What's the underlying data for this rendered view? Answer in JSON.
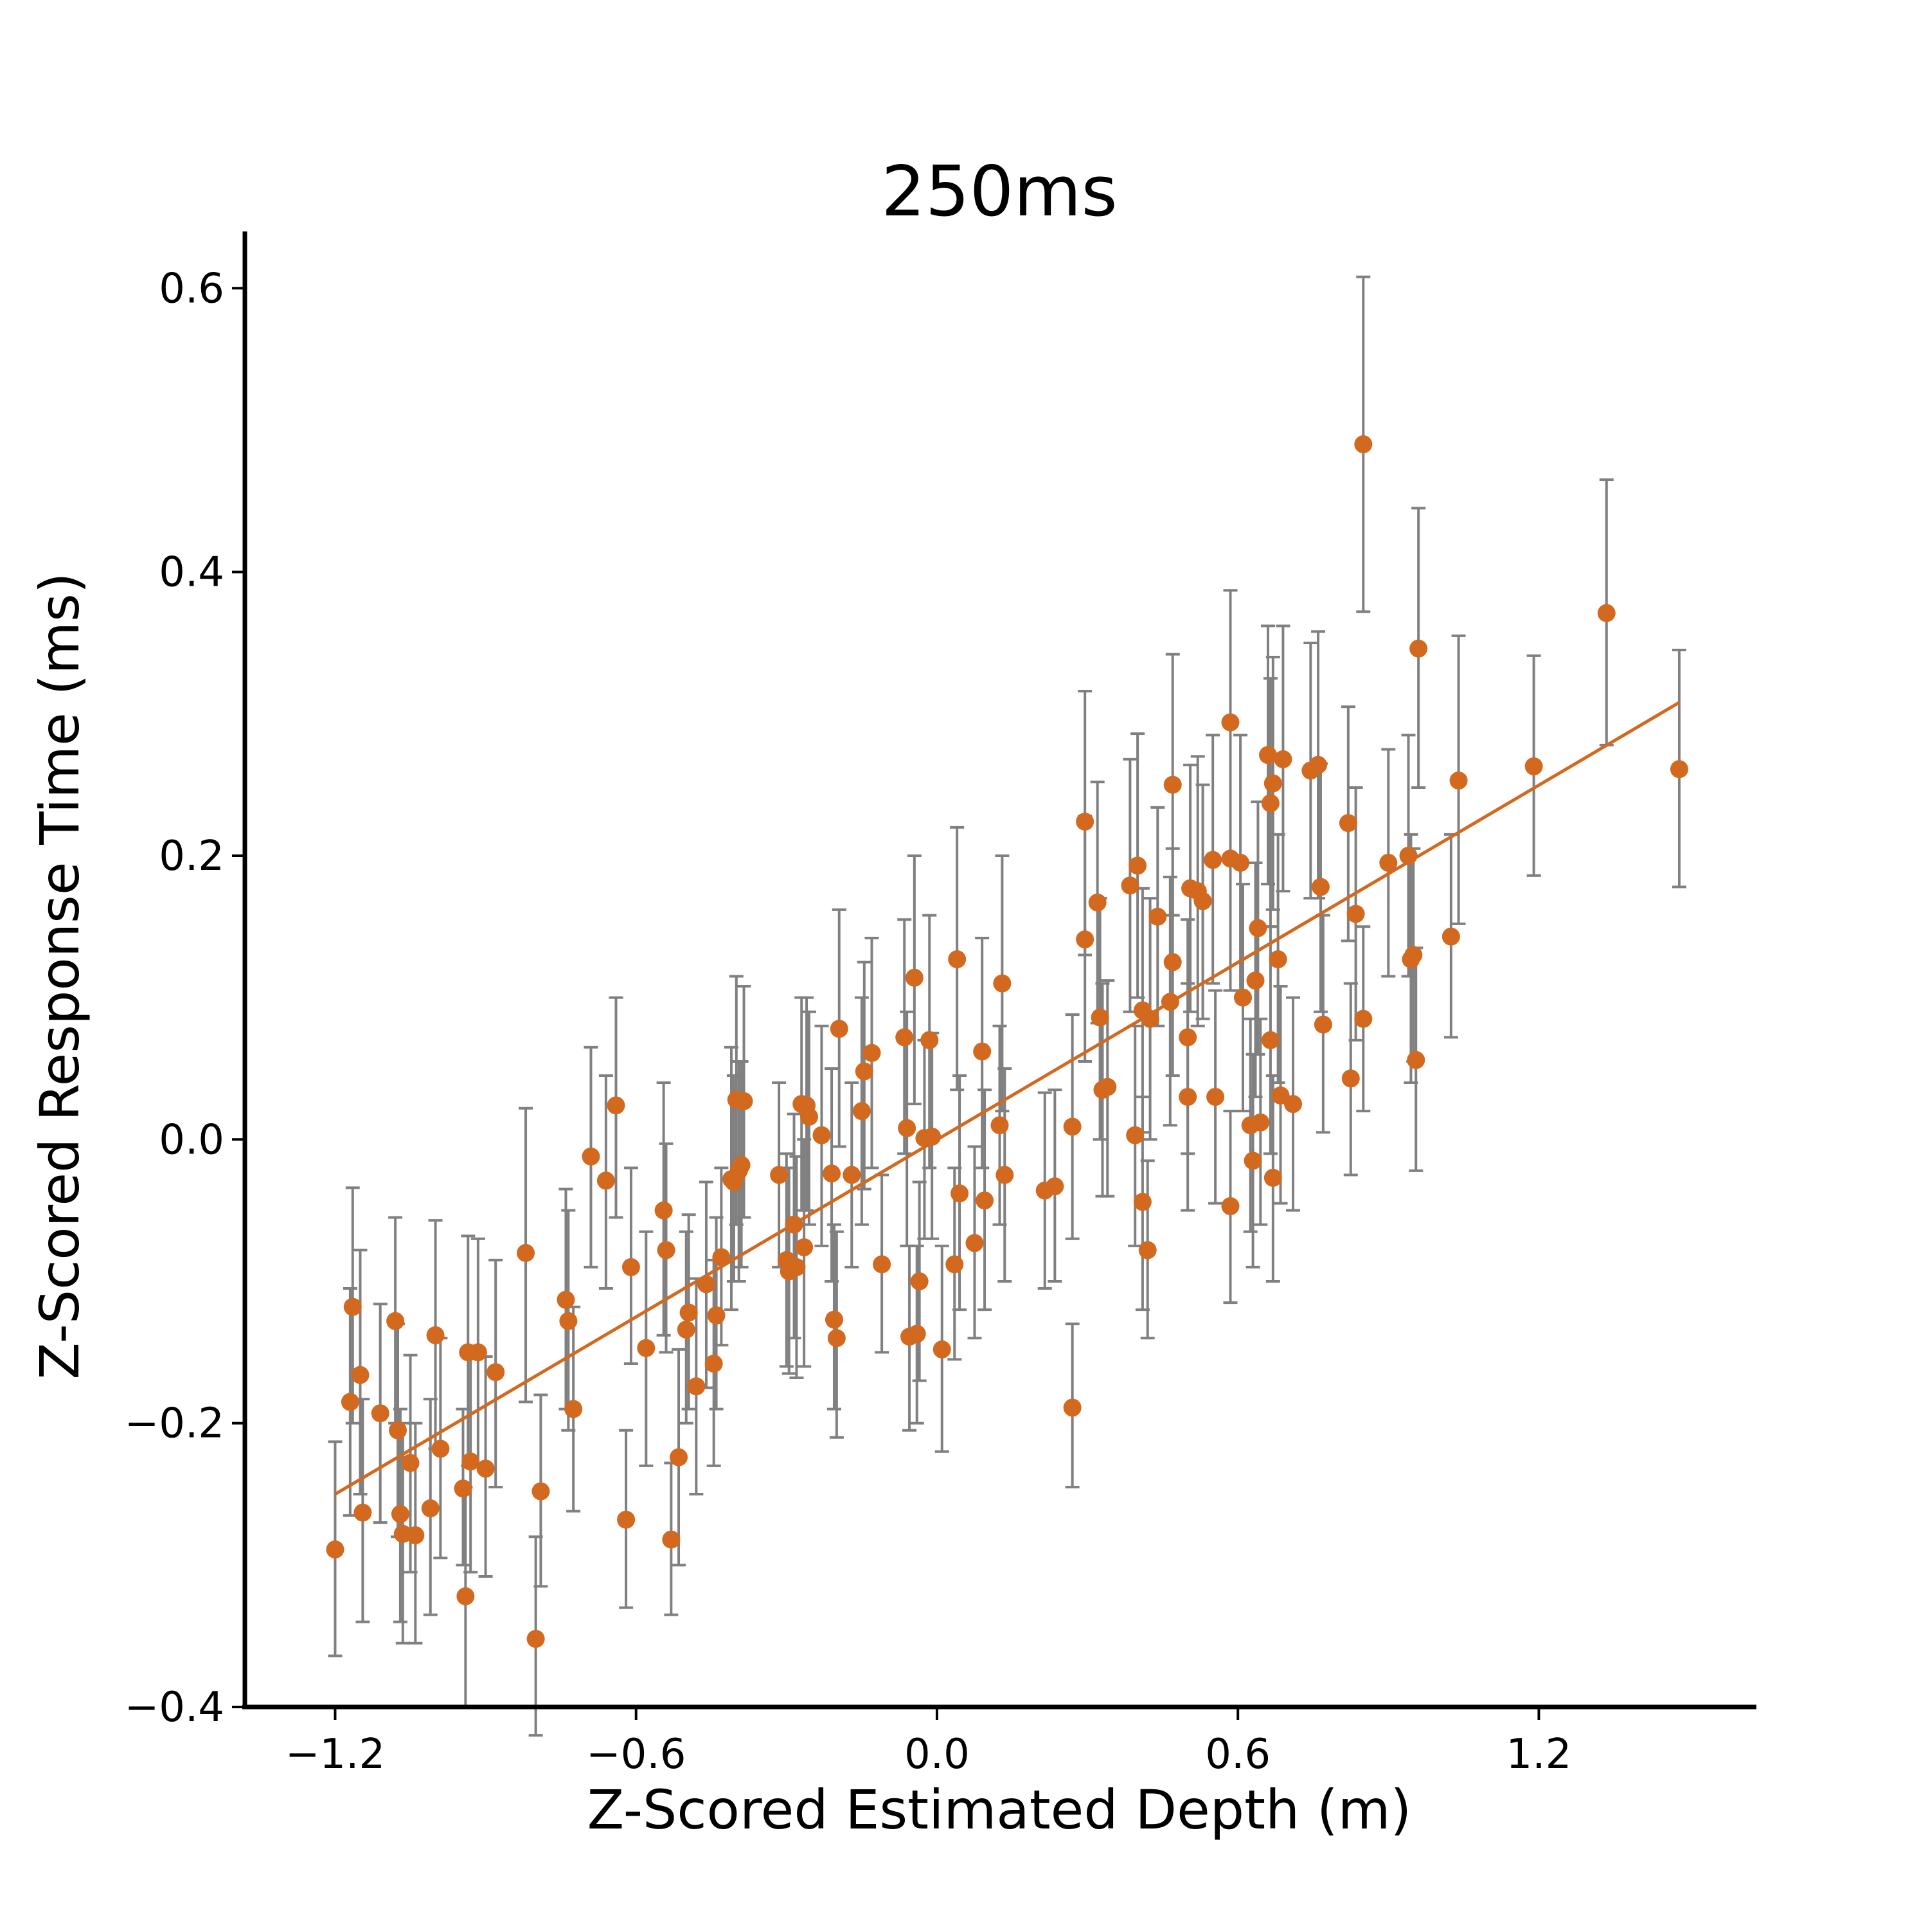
{
  "chart_data": {
    "type": "scatter",
    "title": "250ms",
    "xlabel": "Z-Scored Estimated Depth (m)",
    "ylabel": "Z-Scored Response Time (ms)",
    "xlim": [
      -1.38,
      1.63
    ],
    "ylim": [
      -0.4,
      0.64
    ],
    "xticks": [
      -1.2,
      -0.6,
      0.0,
      0.6,
      1.2
    ],
    "xtick_labels": [
      "−1.2",
      "−0.6",
      "0.0",
      "0.6",
      "1.2"
    ],
    "yticks": [
      -0.4,
      -0.2,
      0.0,
      0.2,
      0.4,
      0.6
    ],
    "ytick_labels": [
      "−0.4",
      "−0.2",
      "0.0",
      "0.2",
      "0.4",
      "0.6"
    ],
    "grid": false,
    "legend": "none",
    "colors": {
      "points": "#d2691e",
      "fit_line": "#d2691e",
      "error_bars": "#808080",
      "axes": "#000000"
    },
    "fit_line": {
      "x": [
        -1.2,
        1.48
      ],
      "y": [
        -0.25,
        0.308
      ]
    },
    "points": [
      {
        "x": -1.2,
        "y": -0.289,
        "lo": -0.364,
        "hi": -0.213
      },
      {
        "x": -1.17,
        "y": -0.185,
        "lo": -0.265,
        "hi": -0.105
      },
      {
        "x": -1.165,
        "y": -0.118,
        "lo": -0.2,
        "hi": -0.034
      },
      {
        "x": -1.15,
        "y": -0.166,
        "lo": -0.25,
        "hi": -0.078
      },
      {
        "x": -1.145,
        "y": -0.263,
        "lo": -0.34,
        "hi": -0.183
      },
      {
        "x": -1.11,
        "y": -0.193,
        "lo": -0.27,
        "hi": -0.116
      },
      {
        "x": -1.08,
        "y": -0.128,
        "lo": -0.2,
        "hi": -0.055
      },
      {
        "x": -1.075,
        "y": -0.205,
        "lo": -0.28,
        "hi": -0.13
      },
      {
        "x": -1.07,
        "y": -0.264,
        "lo": -0.34,
        "hi": -0.19
      },
      {
        "x": -1.065,
        "y": -0.278,
        "lo": -0.355,
        "hi": -0.2
      },
      {
        "x": -1.05,
        "y": -0.228,
        "lo": -0.305,
        "hi": -0.152
      },
      {
        "x": -1.04,
        "y": -0.279,
        "lo": -0.355,
        "hi": -0.2
      },
      {
        "x": -1.01,
        "y": -0.26,
        "lo": -0.335,
        "hi": -0.183
      },
      {
        "x": -1.0,
        "y": -0.138,
        "lo": -0.218,
        "hi": -0.057
      },
      {
        "x": -0.99,
        "y": -0.218,
        "lo": -0.295,
        "hi": -0.14
      },
      {
        "x": -0.945,
        "y": -0.246,
        "lo": -0.3,
        "hi": -0.19
      },
      {
        "x": -0.94,
        "y": -0.322,
        "lo": -0.4,
        "hi": -0.245
      },
      {
        "x": -0.935,
        "y": -0.15,
        "lo": -0.23,
        "hi": -0.068
      },
      {
        "x": -0.93,
        "y": -0.227,
        "lo": -0.305,
        "hi": -0.15
      },
      {
        "x": -0.915,
        "y": -0.15,
        "lo": -0.23,
        "hi": -0.07
      },
      {
        "x": -0.9,
        "y": -0.232,
        "lo": -0.308,
        "hi": -0.153
      },
      {
        "x": -0.88,
        "y": -0.164,
        "lo": -0.245,
        "hi": -0.085
      },
      {
        "x": -0.82,
        "y": -0.08,
        "lo": -0.185,
        "hi": 0.022
      },
      {
        "x": -0.8,
        "y": -0.352,
        "lo": -0.42,
        "hi": -0.28
      },
      {
        "x": -0.79,
        "y": -0.248,
        "lo": -0.315,
        "hi": -0.18
      },
      {
        "x": -0.74,
        "y": -0.113,
        "lo": -0.19,
        "hi": -0.035
      },
      {
        "x": -0.735,
        "y": -0.128,
        "lo": -0.205,
        "hi": -0.05
      },
      {
        "x": -0.725,
        "y": -0.19,
        "lo": -0.262,
        "hi": -0.118
      },
      {
        "x": -0.69,
        "y": -0.012,
        "lo": -0.09,
        "hi": 0.065
      },
      {
        "x": -0.66,
        "y": -0.029,
        "lo": -0.105,
        "hi": 0.045
      },
      {
        "x": -0.64,
        "y": 0.024,
        "lo": -0.055,
        "hi": 0.1
      },
      {
        "x": -0.62,
        "y": -0.268,
        "lo": -0.33,
        "hi": -0.205
      },
      {
        "x": -0.61,
        "y": -0.09,
        "lo": -0.158,
        "hi": -0.02
      },
      {
        "x": -0.58,
        "y": -0.147,
        "lo": -0.23,
        "hi": -0.065
      },
      {
        "x": -0.545,
        "y": -0.05,
        "lo": -0.138,
        "hi": 0.04
      },
      {
        "x": -0.54,
        "y": -0.078,
        "lo": -0.15,
        "hi": -0.003
      },
      {
        "x": -0.53,
        "y": -0.282,
        "lo": -0.335,
        "hi": -0.228
      },
      {
        "x": -0.515,
        "y": -0.224,
        "lo": -0.3,
        "hi": -0.148
      },
      {
        "x": -0.5,
        "y": -0.134,
        "lo": -0.2,
        "hi": -0.065
      },
      {
        "x": -0.495,
        "y": -0.122,
        "lo": -0.19,
        "hi": -0.053
      },
      {
        "x": -0.48,
        "y": -0.174,
        "lo": -0.25,
        "hi": -0.098
      },
      {
        "x": -0.46,
        "y": -0.102,
        "lo": -0.175,
        "hi": -0.03
      },
      {
        "x": -0.445,
        "y": -0.158,
        "lo": -0.23,
        "hi": -0.085
      },
      {
        "x": -0.44,
        "y": -0.124,
        "lo": -0.19,
        "hi": -0.055
      },
      {
        "x": -0.43,
        "y": -0.083,
        "lo": -0.145,
        "hi": -0.02
      },
      {
        "x": -0.41,
        "y": -0.028,
        "lo": -0.12,
        "hi": 0.065
      },
      {
        "x": -0.405,
        "y": -0.03,
        "lo": -0.1,
        "hi": 0.045
      },
      {
        "x": -0.4,
        "y": 0.028,
        "lo": -0.06,
        "hi": 0.115
      },
      {
        "x": -0.395,
        "y": -0.022,
        "lo": -0.1,
        "hi": 0.055
      },
      {
        "x": -0.39,
        "y": -0.018,
        "lo": -0.09,
        "hi": 0.055
      },
      {
        "x": -0.385,
        "y": 0.027,
        "lo": -0.055,
        "hi": 0.108
      },
      {
        "x": -0.315,
        "y": -0.025,
        "lo": -0.09,
        "hi": 0.04
      },
      {
        "x": -0.3,
        "y": -0.085,
        "lo": -0.16,
        "hi": -0.01
      },
      {
        "x": -0.295,
        "y": -0.093,
        "lo": -0.165,
        "hi": -0.02
      },
      {
        "x": -0.285,
        "y": -0.06,
        "lo": -0.14,
        "hi": 0.018
      },
      {
        "x": -0.28,
        "y": -0.09,
        "lo": -0.168,
        "hi": -0.012
      },
      {
        "x": -0.27,
        "y": 0.025,
        "lo": -0.05,
        "hi": 0.1
      },
      {
        "x": -0.265,
        "y": -0.076,
        "lo": -0.16,
        "hi": 0.0
      },
      {
        "x": -0.26,
        "y": 0.024,
        "lo": -0.05,
        "hi": 0.1
      },
      {
        "x": -0.255,
        "y": 0.016,
        "lo": -0.06,
        "hi": 0.09
      },
      {
        "x": -0.23,
        "y": 0.003,
        "lo": -0.075,
        "hi": 0.08
      },
      {
        "x": -0.21,
        "y": -0.024,
        "lo": -0.1,
        "hi": 0.05
      },
      {
        "x": -0.205,
        "y": -0.127,
        "lo": -0.19,
        "hi": -0.06
      },
      {
        "x": -0.2,
        "y": -0.14,
        "lo": -0.21,
        "hi": -0.065
      },
      {
        "x": -0.195,
        "y": 0.078,
        "lo": -0.005,
        "hi": 0.162
      },
      {
        "x": -0.17,
        "y": -0.025,
        "lo": -0.09,
        "hi": 0.04
      },
      {
        "x": -0.15,
        "y": 0.02,
        "lo": -0.06,
        "hi": 0.1
      },
      {
        "x": -0.145,
        "y": 0.048,
        "lo": -0.035,
        "hi": 0.125
      },
      {
        "x": -0.13,
        "y": 0.061,
        "lo": -0.02,
        "hi": 0.142
      },
      {
        "x": -0.11,
        "y": -0.088,
        "lo": -0.15,
        "hi": -0.025
      },
      {
        "x": -0.065,
        "y": 0.072,
        "lo": -0.01,
        "hi": 0.155
      },
      {
        "x": -0.06,
        "y": 0.008,
        "lo": -0.075,
        "hi": 0.09
      },
      {
        "x": -0.055,
        "y": -0.139,
        "lo": -0.205,
        "hi": -0.075
      },
      {
        "x": -0.045,
        "y": 0.114,
        "lo": 0.025,
        "hi": 0.2
      },
      {
        "x": -0.04,
        "y": -0.137,
        "lo": -0.2,
        "hi": -0.075
      },
      {
        "x": -0.035,
        "y": -0.1,
        "lo": -0.17,
        "hi": -0.03
      },
      {
        "x": -0.025,
        "y": 0.001,
        "lo": -0.07,
        "hi": 0.07
      },
      {
        "x": -0.015,
        "y": 0.07,
        "lo": -0.02,
        "hi": 0.158
      },
      {
        "x": -0.01,
        "y": 0.002,
        "lo": -0.07,
        "hi": 0.075
      },
      {
        "x": 0.01,
        "y": -0.148,
        "lo": -0.22,
        "hi": -0.075
      },
      {
        "x": 0.035,
        "y": -0.088,
        "lo": -0.155,
        "hi": -0.02
      },
      {
        "x": 0.04,
        "y": 0.127,
        "lo": 0.035,
        "hi": 0.22
      },
      {
        "x": 0.045,
        "y": -0.038,
        "lo": -0.12,
        "hi": 0.045
      },
      {
        "x": 0.075,
        "y": -0.073,
        "lo": -0.14,
        "hi": -0.005
      },
      {
        "x": 0.09,
        "y": 0.062,
        "lo": -0.02,
        "hi": 0.142
      },
      {
        "x": 0.095,
        "y": -0.043,
        "lo": -0.12,
        "hi": 0.035
      },
      {
        "x": 0.125,
        "y": 0.01,
        "lo": -0.06,
        "hi": 0.08
      },
      {
        "x": 0.13,
        "y": 0.11,
        "lo": 0.02,
        "hi": 0.2
      },
      {
        "x": 0.135,
        "y": -0.025,
        "lo": -0.1,
        "hi": 0.05
      },
      {
        "x": 0.215,
        "y": -0.036,
        "lo": -0.105,
        "hi": 0.033
      },
      {
        "x": 0.235,
        "y": -0.033,
        "lo": -0.1,
        "hi": 0.035
      },
      {
        "x": 0.27,
        "y": 0.009,
        "lo": -0.07,
        "hi": 0.088
      },
      {
        "x": 0.27,
        "y": -0.189,
        "lo": -0.245,
        "hi": -0.13
      },
      {
        "x": 0.295,
        "y": 0.141,
        "lo": 0.055,
        "hi": 0.228
      },
      {
        "x": 0.295,
        "y": 0.224,
        "lo": 0.13,
        "hi": 0.316
      },
      {
        "x": 0.32,
        "y": 0.167,
        "lo": 0.082,
        "hi": 0.252
      },
      {
        "x": 0.325,
        "y": 0.086,
        "lo": 0.0,
        "hi": 0.17
      },
      {
        "x": 0.33,
        "y": 0.035,
        "lo": -0.04,
        "hi": 0.11
      },
      {
        "x": 0.34,
        "y": 0.037,
        "lo": -0.04,
        "hi": 0.112
      },
      {
        "x": 0.385,
        "y": 0.179,
        "lo": 0.09,
        "hi": 0.268
      },
      {
        "x": 0.395,
        "y": 0.003,
        "lo": -0.075,
        "hi": 0.08
      },
      {
        "x": 0.4,
        "y": 0.193,
        "lo": 0.1,
        "hi": 0.286
      },
      {
        "x": 0.41,
        "y": -0.044,
        "lo": -0.12,
        "hi": 0.03
      },
      {
        "x": 0.41,
        "y": 0.091,
        "lo": 0.005,
        "hi": 0.177
      },
      {
        "x": 0.42,
        "y": -0.078,
        "lo": -0.14,
        "hi": -0.015
      },
      {
        "x": 0.425,
        "y": 0.085,
        "lo": 0.0,
        "hi": 0.17
      },
      {
        "x": 0.44,
        "y": 0.157,
        "lo": 0.08,
        "hi": 0.234
      },
      {
        "x": 0.465,
        "y": 0.097,
        "lo": 0.01,
        "hi": 0.185
      },
      {
        "x": 0.47,
        "y": 0.25,
        "lo": 0.158,
        "hi": 0.342
      },
      {
        "x": 0.47,
        "y": 0.125,
        "lo": 0.045,
        "hi": 0.205
      },
      {
        "x": 0.5,
        "y": 0.072,
        "lo": -0.01,
        "hi": 0.155
      },
      {
        "x": 0.5,
        "y": 0.03,
        "lo": -0.05,
        "hi": 0.11
      },
      {
        "x": 0.505,
        "y": 0.177,
        "lo": 0.09,
        "hi": 0.264
      },
      {
        "x": 0.52,
        "y": 0.175,
        "lo": 0.08,
        "hi": 0.27
      },
      {
        "x": 0.53,
        "y": 0.168,
        "lo": 0.085,
        "hi": 0.25
      },
      {
        "x": 0.55,
        "y": 0.197,
        "lo": 0.11,
        "hi": 0.285
      },
      {
        "x": 0.555,
        "y": 0.03,
        "lo": -0.045,
        "hi": 0.105
      },
      {
        "x": 0.585,
        "y": 0.294,
        "lo": 0.2,
        "hi": 0.387
      },
      {
        "x": 0.585,
        "y": -0.047,
        "lo": -0.115,
        "hi": 0.02
      },
      {
        "x": 0.585,
        "y": 0.198,
        "lo": 0.105,
        "hi": 0.292
      },
      {
        "x": 0.605,
        "y": 0.195,
        "lo": 0.105,
        "hi": 0.285
      },
      {
        "x": 0.61,
        "y": 0.1,
        "lo": 0.02,
        "hi": 0.18
      },
      {
        "x": 0.625,
        "y": 0.01,
        "lo": -0.065,
        "hi": 0.085
      },
      {
        "x": 0.63,
        "y": -0.015,
        "lo": -0.09,
        "hi": 0.06
      },
      {
        "x": 0.635,
        "y": 0.112,
        "lo": 0.03,
        "hi": 0.195
      },
      {
        "x": 0.64,
        "y": 0.149,
        "lo": 0.06,
        "hi": 0.238
      },
      {
        "x": 0.645,
        "y": 0.012,
        "lo": -0.06,
        "hi": 0.085
      },
      {
        "x": 0.66,
        "y": 0.271,
        "lo": 0.18,
        "hi": 0.362
      },
      {
        "x": 0.665,
        "y": 0.07,
        "lo": -0.01,
        "hi": 0.15
      },
      {
        "x": 0.665,
        "y": 0.237,
        "lo": 0.15,
        "hi": 0.325
      },
      {
        "x": 0.67,
        "y": 0.251,
        "lo": 0.162,
        "hi": 0.34
      },
      {
        "x": 0.67,
        "y": -0.027,
        "lo": -0.1,
        "hi": 0.045
      },
      {
        "x": 0.68,
        "y": 0.127,
        "lo": 0.04,
        "hi": 0.215
      },
      {
        "x": 0.685,
        "y": 0.031,
        "lo": -0.045,
        "hi": 0.108
      },
      {
        "x": 0.69,
        "y": 0.268,
        "lo": 0.175,
        "hi": 0.362
      },
      {
        "x": 0.71,
        "y": 0.025,
        "lo": -0.05,
        "hi": 0.1
      },
      {
        "x": 0.745,
        "y": 0.26,
        "lo": 0.17,
        "hi": 0.35
      },
      {
        "x": 0.76,
        "y": 0.264,
        "lo": 0.17,
        "hi": 0.358
      },
      {
        "x": 0.765,
        "y": 0.178,
        "lo": 0.09,
        "hi": 0.265
      },
      {
        "x": 0.77,
        "y": 0.081,
        "lo": 0.005,
        "hi": 0.158
      },
      {
        "x": 0.82,
        "y": 0.223,
        "lo": 0.14,
        "hi": 0.305
      },
      {
        "x": 0.825,
        "y": 0.043,
        "lo": -0.025,
        "hi": 0.11
      },
      {
        "x": 0.835,
        "y": 0.159,
        "lo": 0.07,
        "hi": 0.248
      },
      {
        "x": 0.85,
        "y": 0.49,
        "lo": 0.372,
        "hi": 0.608
      },
      {
        "x": 0.85,
        "y": 0.085,
        "lo": 0.02,
        "hi": 0.15
      },
      {
        "x": 0.9,
        "y": 0.195,
        "lo": 0.115,
        "hi": 0.275
      },
      {
        "x": 0.94,
        "y": 0.2,
        "lo": 0.115,
        "hi": 0.285
      },
      {
        "x": 0.945,
        "y": 0.127,
        "lo": 0.04,
        "hi": 0.215
      },
      {
        "x": 0.95,
        "y": 0.13,
        "lo": 0.055,
        "hi": 0.205
      },
      {
        "x": 0.955,
        "y": 0.056,
        "lo": -0.022,
        "hi": 0.135
      },
      {
        "x": 0.96,
        "y": 0.346,
        "lo": 0.248,
        "hi": 0.445
      },
      {
        "x": 1.025,
        "y": 0.143,
        "lo": 0.072,
        "hi": 0.215
      },
      {
        "x": 1.04,
        "y": 0.253,
        "lo": 0.152,
        "hi": 0.355
      },
      {
        "x": 1.19,
        "y": 0.263,
        "lo": 0.186,
        "hi": 0.341
      },
      {
        "x": 1.335,
        "y": 0.371,
        "lo": 0.278,
        "hi": 0.465
      },
      {
        "x": 1.48,
        "y": 0.261,
        "lo": 0.178,
        "hi": 0.345
      }
    ]
  }
}
